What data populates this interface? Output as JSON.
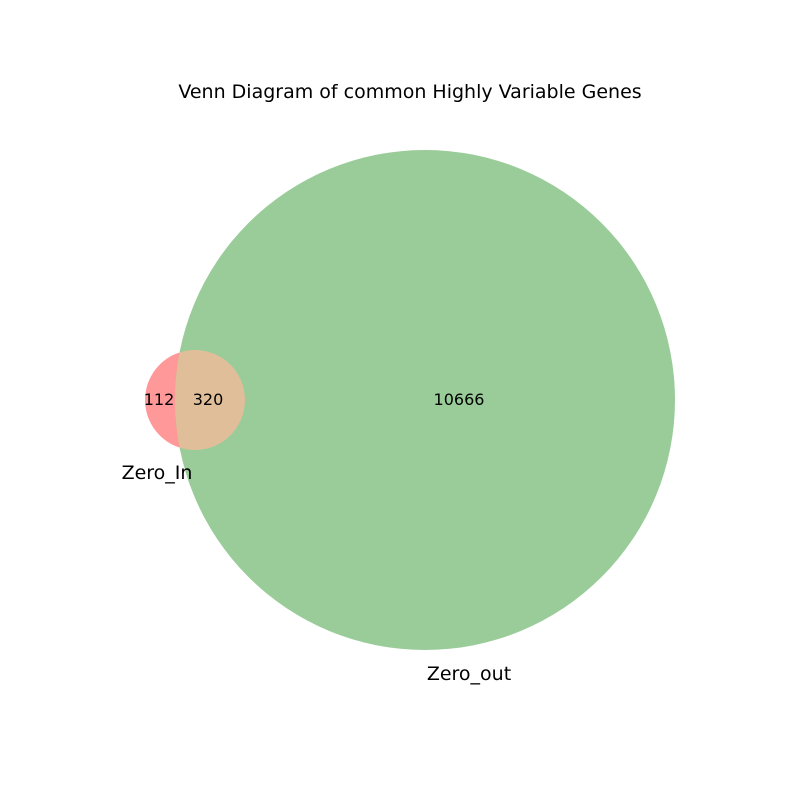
{
  "chart_data": {
    "type": "venn",
    "title": "Venn Diagram of common Highly Variable Genes",
    "sets": [
      {
        "name": "Zero_In",
        "color": "#ff9999"
      },
      {
        "name": "Zero_out",
        "color": "#99cc99"
      }
    ],
    "regions": {
      "only_a": "112",
      "intersection": "320",
      "only_b": "10666"
    },
    "intersection_color": "#e0be99"
  }
}
